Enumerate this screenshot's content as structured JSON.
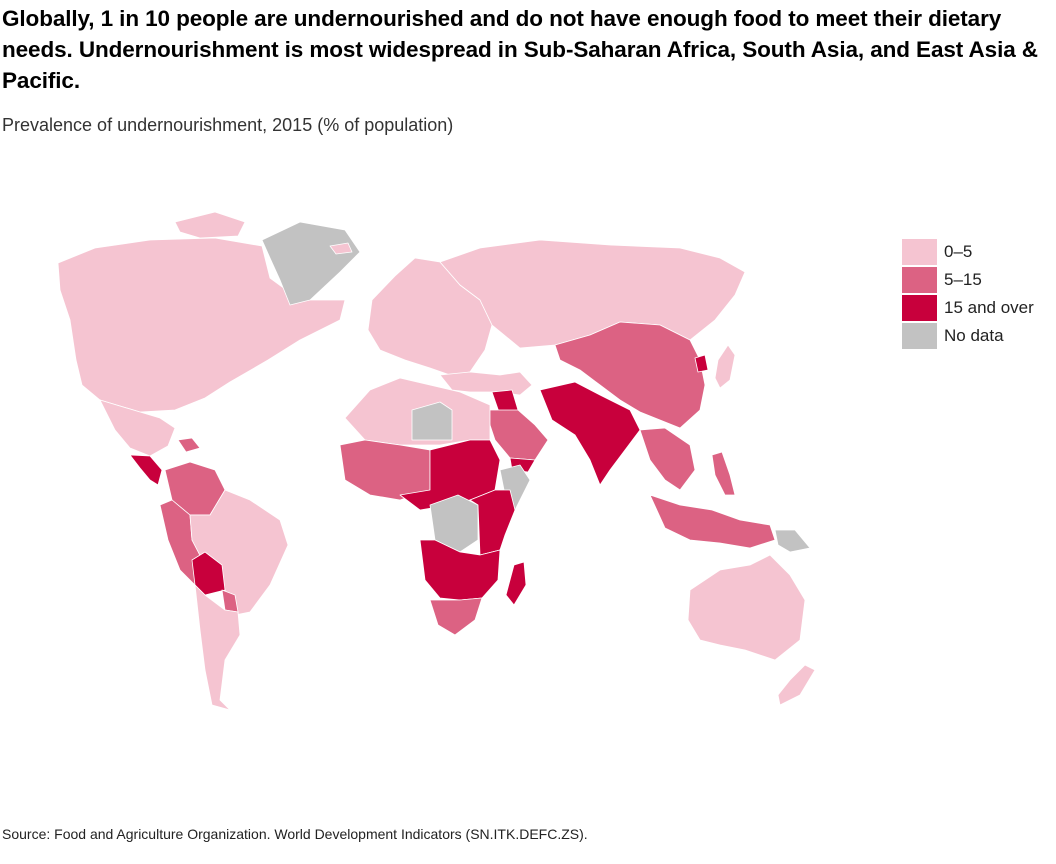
{
  "title": "Globally, 1 in 10 people are undernourished and do not have enough food to meet their dietary needs. Undernourishment is most widespread in Sub-Saharan Africa, South Asia, and East Asia & Pacific.",
  "subtitle": "Prevalence of undernourishment, 2015 (% of population)",
  "legend": {
    "items": [
      {
        "label": "0–5",
        "color": "#f5c4d1"
      },
      {
        "label": "5–15",
        "color": "#dc6283"
      },
      {
        "label": "15 and over",
        "color": "#c8003c"
      },
      {
        "label": "No data",
        "color": "#c2c2c2"
      }
    ]
  },
  "colors": {
    "low": "#f5c4d1",
    "medium": "#dc6283",
    "high": "#c8003c",
    "nodata": "#c2c2c2"
  },
  "source": "Source: Food and Agriculture Organization. World Development Indicators (SN.ITK.DEFC.ZS).",
  "chart_data": {
    "type": "choropleth",
    "measure": "Prevalence of undernourishment, 2015 (% of population)",
    "bins": [
      "0–5",
      "5–15",
      "15 and over",
      "No data"
    ],
    "regions": [
      {
        "region": "North America",
        "bin": "0–5"
      },
      {
        "region": "Greenland",
        "bin": "No data"
      },
      {
        "region": "Mexico",
        "bin": "0–5"
      },
      {
        "region": "Central America",
        "bin": "15 and over"
      },
      {
        "region": "Caribbean",
        "bin": "5–15"
      },
      {
        "region": "Colombia / Venezuela",
        "bin": "5–15"
      },
      {
        "region": "Peru / Ecuador",
        "bin": "5–15"
      },
      {
        "region": "Brazil",
        "bin": "0–5"
      },
      {
        "region": "Bolivia",
        "bin": "15 and over"
      },
      {
        "region": "Paraguay",
        "bin": "5–15"
      },
      {
        "region": "Southern Cone",
        "bin": "0–5"
      },
      {
        "region": "Europe",
        "bin": "0–5"
      },
      {
        "region": "Russia / Central Asia",
        "bin": "0–5"
      },
      {
        "region": "Mongolia / China",
        "bin": "5–15"
      },
      {
        "region": "North Korea",
        "bin": "15 and over"
      },
      {
        "region": "Japan / South Korea",
        "bin": "0–5"
      },
      {
        "region": "Middle East",
        "bin": "0–5"
      },
      {
        "region": "Iraq",
        "bin": "15 and over"
      },
      {
        "region": "Saudi Arabia / Oman",
        "bin": "5–15"
      },
      {
        "region": "Yemen",
        "bin": "15 and over"
      },
      {
        "region": "Afghanistan / Pakistan / India",
        "bin": "15 and over"
      },
      {
        "region": "Southeast Asia",
        "bin": "5–15"
      },
      {
        "region": "Indonesia",
        "bin": "5–15"
      },
      {
        "region": "Papua New Guinea",
        "bin": "No data"
      },
      {
        "region": "Australia / New Zealand",
        "bin": "0–5"
      },
      {
        "region": "North Africa",
        "bin": "0–5"
      },
      {
        "region": "Libya",
        "bin": "No data"
      },
      {
        "region": "West Africa",
        "bin": "5–15"
      },
      {
        "region": "Sahel / Central Africa",
        "bin": "15 and over"
      },
      {
        "region": "DR Congo",
        "bin": "No data"
      },
      {
        "region": "Somalia / Eritrea",
        "bin": "No data"
      },
      {
        "region": "Ethiopia / East Africa",
        "bin": "15 and over"
      },
      {
        "region": "Southern Africa",
        "bin": "15 and over"
      },
      {
        "region": "South Africa",
        "bin": "5–15"
      },
      {
        "region": "Madagascar",
        "bin": "15 and over"
      }
    ]
  }
}
